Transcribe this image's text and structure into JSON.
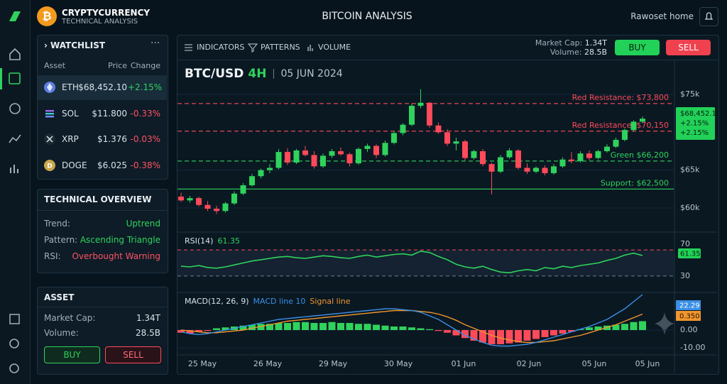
{
  "app": {
    "brand": "CRYPTYCURRENCY",
    "brand_sub": "TECHNICAL ANALYSIS",
    "title": "BITCOIN ANALYSIS",
    "user": "Rawoset home"
  },
  "watchlist": {
    "title": "WATCHLIST",
    "headers": [
      "Asset",
      "Price",
      "Change"
    ],
    "rows": [
      [
        "ETH",
        "$68,452.10",
        "+2.15%"
      ],
      [
        "SOL",
        "$11.800",
        "-0.33%"
      ],
      [
        "XRP",
        "$1.376",
        "-0.03%"
      ],
      [
        "DOGE",
        "$6.025",
        "-0.38%"
      ]
    ]
  },
  "overview": {
    "title": "TECHNICAL OVERVIEW",
    "rows": [
      [
        "Trend:",
        "Uptrend"
      ],
      [
        "Pattern:",
        "Ascending Triangle"
      ],
      [
        "RSI:",
        "Overbought Warning"
      ]
    ]
  },
  "asset": {
    "title": "ASSET",
    "rows": [
      [
        "Market Cap:",
        "1.34T"
      ],
      [
        "Volume:",
        "28.5B"
      ]
    ],
    "buy": "BUY",
    "sell": "SELL"
  },
  "toolbar": {
    "tabs": [
      "INDICATORS",
      "PATTERNS",
      "VOLUME"
    ],
    "market_cap_label": "Market Cap:",
    "market_cap": "1.34T",
    "volume_label": "Volume:",
    "volume": "28.5B",
    "buy": "BUY",
    "sell": "SELL"
  },
  "chart_data": [
    {
      "type": "candlestick",
      "symbol": "BTC/USD",
      "interval": "4H",
      "date": "05 JUN 2024",
      "open": [
        61500,
        61000,
        61300,
        60400,
        59900,
        59600,
        60600,
        61900,
        63000,
        64200,
        65000,
        65300,
        67400,
        66000,
        67600,
        67000,
        65500,
        66900,
        67500,
        67100,
        65900,
        67800,
        68200,
        67000,
        68600,
        69900,
        71000,
        73500,
        73900,
        70900,
        70000,
        68500,
        68800,
        66600,
        67500,
        65800,
        64800,
        66700,
        67600,
        65300,
        64800,
        65300,
        64600,
        65500,
        66400,
        66200,
        67200,
        66600,
        67500,
        68100,
        69000,
        70300,
        71400
      ],
      "high": [
        62000,
        61600,
        61500,
        60900,
        60300,
        60800,
        62200,
        63300,
        64500,
        65200,
        65800,
        67800,
        67900,
        67800,
        68200,
        67500,
        67200,
        67800,
        68000,
        67300,
        68000,
        68500,
        68400,
        68900,
        70200,
        71200,
        73800,
        75700,
        74000,
        71300,
        70400,
        69300,
        69000,
        67700,
        67800,
        66000,
        67000,
        67900,
        67800,
        65900,
        65500,
        65600,
        65800,
        66700,
        67400,
        67500,
        67600,
        67700,
        68400,
        69300,
        70500,
        71600,
        72100
      ],
      "low": [
        60800,
        60700,
        60200,
        59600,
        59200,
        59400,
        60400,
        61700,
        62800,
        63900,
        64600,
        65100,
        65700,
        65800,
        66800,
        65200,
        65300,
        66600,
        66900,
        65500,
        65700,
        67400,
        66600,
        66800,
        68400,
        69600,
        70800,
        73200,
        70600,
        69800,
        68200,
        67600,
        66300,
        66400,
        65500,
        61800,
        64600,
        66500,
        65100,
        64500,
        64600,
        64300,
        64400,
        65300,
        65900,
        66000,
        66300,
        66400,
        67300,
        67900,
        68800,
        70100,
        71200
      ],
      "close": [
        61000,
        61300,
        60400,
        59900,
        59600,
        60600,
        61900,
        63000,
        64200,
        65000,
        65300,
        67400,
        66000,
        67600,
        67000,
        65500,
        66900,
        67500,
        67100,
        65900,
        67800,
        68200,
        67000,
        68600,
        69900,
        71000,
        73500,
        73900,
        70900,
        70000,
        68500,
        68800,
        66600,
        67500,
        65800,
        64800,
        66700,
        67600,
        65300,
        64800,
        65300,
        64600,
        65500,
        66400,
        66200,
        67200,
        66600,
        67500,
        68100,
        69000,
        70300,
        71400,
        71800
      ],
      "up_color": "#2fd35c",
      "down_color": "#ff4a5a",
      "ylim": [
        57000,
        78100
      ],
      "yticks": [
        {
          "value": 60000,
          "label": "$60k"
        },
        {
          "value": 65000,
          "label": "$65k"
        },
        {
          "value": 75000,
          "label": "$75k"
        }
      ],
      "levels": [
        {
          "label": "Red Resistance: $73,800",
          "value": 73800,
          "color": "#ff4a5a",
          "style": "dashed"
        },
        {
          "label": "Red Resistance: $70,150",
          "value": 70150,
          "color": "#ff4a5a",
          "style": "dashed"
        },
        {
          "label": "Green $66,200",
          "value": 66200,
          "color": "#2fd35c",
          "style": "dashed"
        },
        {
          "label": "Support: $62,500",
          "value": 62500,
          "color": "#2fd35c",
          "style": "solid"
        }
      ],
      "price_tag": [
        "$68,452.10",
        "+2.15%",
        "+2.15%"
      ],
      "x_tick_labels": [
        "25 May",
        "26 May",
        "29 May",
        "30 May",
        "01 Jun",
        "02 Jun",
        "05 Jun",
        "05 Jun"
      ]
    },
    {
      "type": "line",
      "title": "RSI(14)",
      "value_label": "61.35",
      "color": "#2fd35c",
      "values": [
        45,
        44,
        46,
        43,
        42,
        44,
        47,
        50,
        53,
        55,
        57,
        59,
        60,
        58,
        57,
        59,
        61,
        60,
        58,
        57,
        60,
        62,
        59,
        61,
        63,
        64,
        62,
        68,
        66,
        60,
        55,
        48,
        44,
        42,
        45,
        40,
        36,
        35,
        38,
        40,
        38,
        43,
        41,
        45,
        43,
        46,
        48,
        50,
        54,
        57,
        62,
        65,
        61.35
      ],
      "ylim": [
        7,
        94
      ],
      "yticks": [
        30,
        70
      ]
    },
    {
      "type": "macd",
      "title": "MACD(12, 26, 9)",
      "macd_label": "MACD line 10",
      "signal_label": "Signal line",
      "macd_color": "#3b8fe6",
      "signal_color": "#f0962e",
      "up_color": "#2fd35c",
      "down_color": "#ff4a5a",
      "histogram": [
        -1.5,
        -2,
        -1,
        -0.5,
        1,
        1.5,
        2,
        2.5,
        3,
        3.5,
        3.5,
        4,
        4,
        4.5,
        4.5,
        4,
        4,
        4.5,
        4,
        4,
        3.5,
        3.5,
        3,
        2.5,
        2,
        2,
        1.5,
        1,
        0.5,
        -0.5,
        -1.5,
        -3,
        -4.5,
        -6,
        -7,
        -8,
        -8,
        -7.5,
        -7,
        -6,
        -5,
        -4,
        -3,
        -2,
        -1,
        0.5,
        1.5,
        2,
        2.5,
        3,
        3.5,
        4.5,
        5
      ],
      "macd": [
        -1,
        -2,
        -2.5,
        -2,
        -1,
        0,
        1,
        2,
        3,
        4,
        5,
        6,
        6.5,
        7,
        7.5,
        8,
        8.5,
        9,
        9.5,
        10,
        10.5,
        11,
        11.5,
        12,
        12,
        11.5,
        11,
        10,
        8,
        6,
        3,
        0,
        -3,
        -5,
        -7,
        -8.5,
        -9,
        -9,
        -8.5,
        -8,
        -7,
        -5.5,
        -4,
        -2.5,
        -1,
        0.5,
        2,
        4,
        6,
        9,
        12,
        16,
        20
      ],
      "signal": [
        0,
        -0.5,
        -1,
        -1.5,
        -1.5,
        -1,
        -0.5,
        0,
        1,
        2,
        3,
        4,
        5,
        5.5,
        6,
        6.5,
        7,
        7.5,
        8,
        8.5,
        9,
        9.5,
        10,
        10.5,
        11,
        11,
        11,
        10.5,
        10,
        9,
        7.5,
        5.5,
        3,
        1,
        -1,
        -3,
        -4.5,
        -5.5,
        -6.5,
        -7,
        -7,
        -6.5,
        -6,
        -5,
        -4,
        -3,
        -1.5,
        0,
        1.5,
        3,
        5,
        7,
        9
      ],
      "ylim": [
        -14,
        20
      ],
      "yticks": [
        {
          "value": 0,
          "label": "0.00"
        },
        {
          "value": -10,
          "label": "-10.00"
        }
      ],
      "tags": [
        "22.29",
        "0.350"
      ]
    }
  ]
}
